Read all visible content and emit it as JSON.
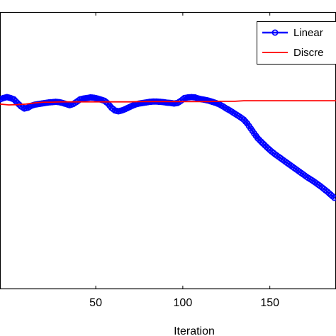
{
  "chart_data": {
    "type": "line",
    "title": "",
    "xlabel": "Iteration",
    "ylabel": "",
    "xlim": [
      -5,
      188
    ],
    "ylim": [
      0,
      1
    ],
    "xticks": [
      50,
      100,
      150
    ],
    "xtick_labels": [
      "50",
      "100",
      "150"
    ],
    "grid": false,
    "legend_position": "top-right",
    "legend": [
      "Linear",
      "Discre"
    ],
    "series": [
      {
        "name": "Linear",
        "color": "#0000ff",
        "marker": "circle",
        "x": [
          -5,
          -3,
          -1,
          1,
          3,
          5,
          7,
          9,
          11,
          13,
          15,
          17,
          19,
          21,
          23,
          25,
          27,
          29,
          31,
          33,
          35,
          37,
          39,
          41,
          43,
          45,
          47,
          49,
          51,
          53,
          55,
          57,
          59,
          61,
          63,
          65,
          67,
          69,
          71,
          73,
          75,
          77,
          79,
          81,
          83,
          85,
          87,
          89,
          91,
          93,
          95,
          97,
          99,
          101,
          103,
          105,
          107,
          109,
          111,
          113,
          115,
          117,
          119,
          121,
          123,
          125,
          127,
          129,
          131,
          133,
          135,
          137,
          139,
          141,
          143,
          145,
          147,
          149,
          151,
          153,
          155,
          157,
          159,
          161,
          163,
          165,
          167,
          169,
          171,
          173,
          175,
          177,
          179,
          181,
          183,
          185,
          187
        ],
        "y": [
          0.685,
          0.69,
          0.693,
          0.69,
          0.685,
          0.672,
          0.66,
          0.652,
          0.655,
          0.662,
          0.666,
          0.668,
          0.67,
          0.672,
          0.674,
          0.675,
          0.676,
          0.675,
          0.672,
          0.668,
          0.664,
          0.668,
          0.676,
          0.685,
          0.688,
          0.69,
          0.692,
          0.691,
          0.688,
          0.684,
          0.68,
          0.67,
          0.655,
          0.645,
          0.642,
          0.645,
          0.65,
          0.656,
          0.662,
          0.667,
          0.67,
          0.672,
          0.674,
          0.676,
          0.677,
          0.677,
          0.676,
          0.675,
          0.673,
          0.672,
          0.67,
          0.672,
          0.68,
          0.69,
          0.692,
          0.693,
          0.692,
          0.688,
          0.685,
          0.683,
          0.68,
          0.676,
          0.672,
          0.667,
          0.66,
          0.652,
          0.645,
          0.637,
          0.629,
          0.621,
          0.612,
          0.598,
          0.58,
          0.562,
          0.545,
          0.532,
          0.52,
          0.508,
          0.497,
          0.487,
          0.478,
          0.469,
          0.46,
          0.451,
          0.442,
          0.433,
          0.424,
          0.415,
          0.406,
          0.398,
          0.39,
          0.381,
          0.372,
          0.362,
          0.352,
          0.341,
          0.33
        ]
      },
      {
        "name": "Discre",
        "color": "#ff0000",
        "marker": "none",
        "x": [
          -5,
          0,
          5,
          10,
          15,
          20,
          25,
          30,
          35,
          40,
          45,
          50,
          55,
          60,
          65,
          70,
          75,
          80,
          85,
          90,
          95,
          100,
          105,
          110,
          115,
          120,
          125,
          130,
          135,
          140,
          145,
          150,
          160,
          170,
          180,
          188
        ],
        "y": [
          0.668,
          0.665,
          0.666,
          0.668,
          0.672,
          0.675,
          0.675,
          0.676,
          0.676,
          0.676,
          0.676,
          0.676,
          0.676,
          0.676,
          0.676,
          0.676,
          0.677,
          0.677,
          0.677,
          0.677,
          0.677,
          0.677,
          0.677,
          0.677,
          0.677,
          0.678,
          0.678,
          0.678,
          0.68,
          0.68,
          0.68,
          0.68,
          0.68,
          0.68,
          0.68,
          0.68
        ]
      }
    ]
  }
}
